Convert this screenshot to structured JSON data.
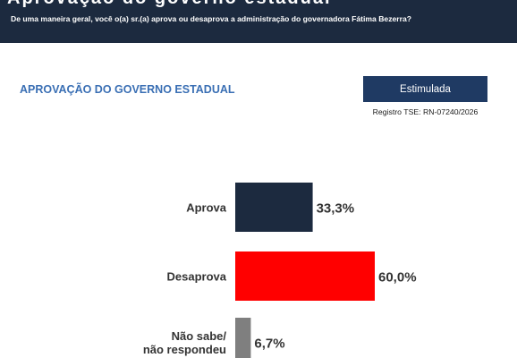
{
  "header": {
    "title_fragment": "Aprovação do governo estadual",
    "question": "De uma maneira geral, você o(a) sr.(a) aprova ou desaprova a administração do governadora Fátima Bezerra?"
  },
  "section_title": "APROVAÇÃO DO GOVERNO ESTADUAL",
  "method_badge": "Estimulada",
  "registro": "Registro TSE: RN-07240/2026",
  "chart_data": {
    "type": "bar",
    "orientation": "horizontal",
    "categories": [
      "Aprova",
      "Desaprova",
      "Não sabe/\nnão respondeu"
    ],
    "values": [
      33.3,
      60.0,
      6.7
    ],
    "value_labels": [
      "33,3%",
      "60,0%",
      "6,7%"
    ],
    "colors": [
      "#1c2a3f",
      "#ff0000",
      "#7f7f7f"
    ],
    "xlim": [
      0,
      60
    ],
    "grid": false,
    "legend": "none"
  }
}
